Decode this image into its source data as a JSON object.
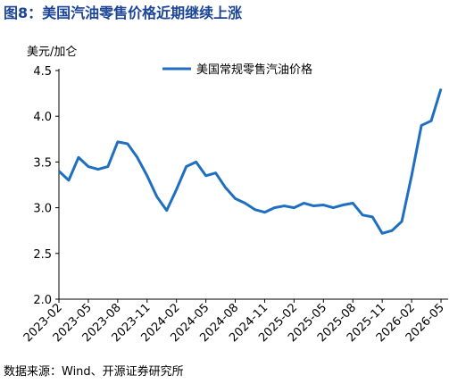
{
  "chart_data": {
    "type": "line",
    "title": "图8：美国汽油零售价格近期继续上涨",
    "y_label": "美元/加仑",
    "source": "数据来源：Wind、开源证券研究所",
    "categories": [
      "2023-02",
      null,
      null,
      "2023-05",
      null,
      null,
      "2023-08",
      null,
      null,
      "2023-11",
      null,
      null,
      "2024-02",
      null,
      null,
      "2024-05",
      null,
      null,
      "2024-08",
      null,
      null,
      "2024-11",
      null,
      null,
      "2025-02",
      null,
      null,
      "2025-05",
      null,
      null,
      "2025-08",
      null,
      null,
      "2025-11",
      null,
      null,
      "2026-02",
      null,
      null,
      "2026-05"
    ],
    "series": [
      {
        "name": "美国常规零售汽油价格",
        "color": "#1f6fc0",
        "values": [
          3.4,
          3.3,
          3.55,
          3.45,
          3.42,
          3.45,
          3.72,
          3.7,
          3.55,
          3.35,
          3.12,
          2.97,
          3.2,
          3.45,
          3.5,
          3.35,
          3.38,
          3.22,
          3.1,
          3.05,
          2.98,
          2.95,
          3.0,
          3.02,
          3.0,
          3.05,
          3.02,
          3.03,
          3.0,
          3.03,
          3.05,
          2.92,
          2.9,
          2.72,
          2.75,
          2.85,
          3.35,
          3.9,
          3.95,
          4.3
        ]
      }
    ],
    "ylim": [
      2.0,
      4.5
    ],
    "yticks": [
      {
        "value": 2,
        "label": "2.0"
      },
      2.5,
      {
        "value": 3,
        "label": "3.0"
      },
      3.5,
      {
        "value": 4,
        "label": "4.0"
      },
      4.5
    ]
  }
}
